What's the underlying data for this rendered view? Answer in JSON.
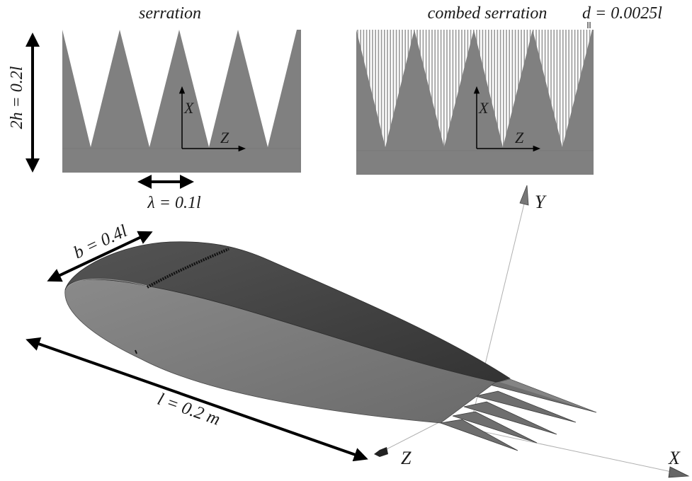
{
  "panels": {
    "serration": {
      "title": "serration"
    },
    "combed": {
      "title": "combed serration",
      "spacing_label": "d = 0.0025l"
    }
  },
  "dimensions": {
    "height": "2h = 0.2l",
    "wavelength": "λ = 0.1l",
    "span": "b = 0.4l",
    "chord": "l = 0.2 m"
  },
  "axes": {
    "inset_x": "X",
    "inset_z": "Z",
    "main_x": "X",
    "main_y": "Y",
    "main_z": "Z"
  },
  "colors": {
    "serration_fill": "#808080",
    "airfoil_top": "#3c3c3c",
    "airfoil_side": "#7a7a7a",
    "arrow": "#000000"
  }
}
